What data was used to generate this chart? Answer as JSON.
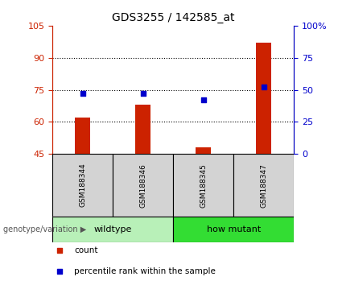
{
  "title": "GDS3255 / 142585_at",
  "samples": [
    "GSM188344",
    "GSM188346",
    "GSM188345",
    "GSM188347"
  ],
  "bar_values": [
    62,
    68,
    48,
    97
  ],
  "percentile_values": [
    47,
    47,
    42,
    52
  ],
  "bar_color": "#cc2200",
  "dot_color": "#0000cc",
  "ylim_left": [
    45,
    105
  ],
  "ylim_right": [
    0,
    100
  ],
  "yticks_left": [
    45,
    60,
    75,
    90,
    105
  ],
  "yticks_right": [
    0,
    25,
    50,
    75,
    100
  ],
  "ytick_right_labels": [
    "0",
    "25",
    "50",
    "75",
    "100%"
  ],
  "groups": [
    {
      "label": "wildtype",
      "indices": [
        0,
        1
      ],
      "color": "#90ee90"
    },
    {
      "label": "how mutant",
      "indices": [
        2,
        3
      ],
      "color": "#22cc22"
    }
  ],
  "group_label_prefix": "genotype/variation",
  "legend_items": [
    {
      "label": "count",
      "color": "#cc2200"
    },
    {
      "label": "percentile rank within the sample",
      "color": "#0000cc"
    }
  ],
  "left_yaxis_color": "#cc2200",
  "right_yaxis_color": "#0000cc",
  "bar_width": 0.25,
  "bg_color": "#ffffff",
  "sample_box_color": "#d3d3d3",
  "group_bar_light_green": "#b8f0b8",
  "group_bar_dark_green": "#33dd33"
}
